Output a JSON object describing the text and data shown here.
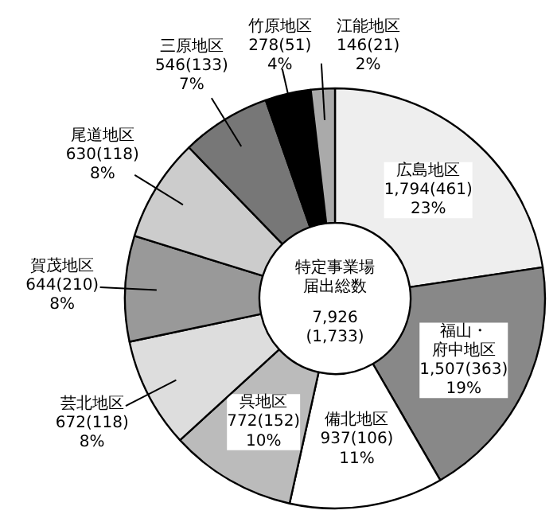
{
  "chart_data": {
    "type": "donut",
    "title": "特定事業場届出総数",
    "annotations": [
      "7,926\n(1,733)"
    ],
    "categories": [
      "広島地区",
      "福山・府中地区",
      "備北地区",
      "呉地区",
      "芸北地区",
      "賀茂地区",
      "尾道地区",
      "三原地区",
      "竹原地区",
      "江能地区"
    ],
    "values": [
      1794,
      1507,
      937,
      772,
      672,
      644,
      630,
      546,
      278,
      146
    ],
    "value_labels": [
      "1,794(461)\n23%",
      "1,507(363)\n19%",
      "937(106)\n11%",
      "772(152)\n10%",
      "672(118)\n8%",
      "644(210)\n8%",
      "630(118)\n8%",
      "546(133)\n7%",
      "278(51)\n4%",
      "146(21)\n2%"
    ],
    "colors": [
      "#eeeeee",
      "#888888",
      "#ffffff",
      "#bbbbbb",
      "#dddddd",
      "#999999",
      "#cccccc",
      "#777777",
      "#000000",
      "#aaaaaa"
    ]
  }
}
